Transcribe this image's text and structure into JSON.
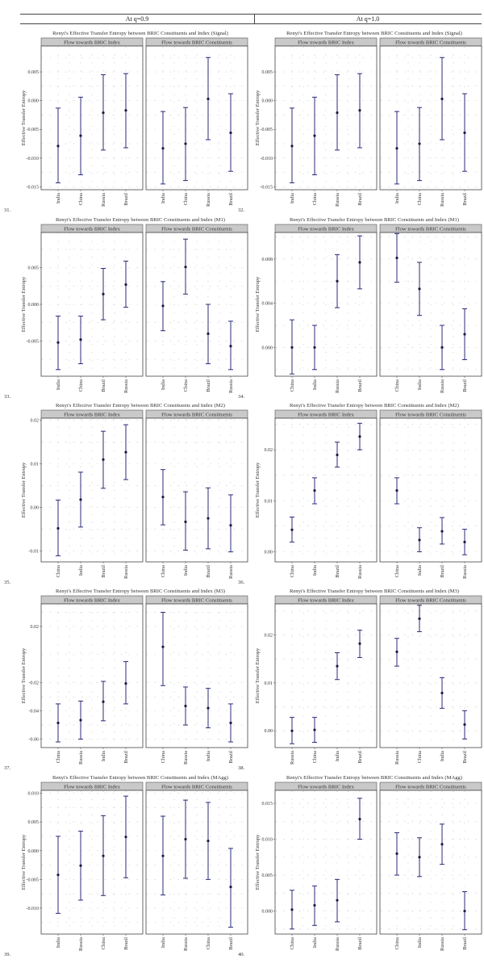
{
  "header": {
    "left": "At q=0.9",
    "right": "At q=1.0"
  },
  "ylabel": "Effective Transfer Entropy",
  "facet_labels": [
    "Flow towards BRIC Index",
    "Flow towards BRIC Constituents"
  ],
  "colors": {
    "series": "#2b2b7a",
    "facet_bg": "#c9c9c9",
    "grid": "#9a9a9a"
  },
  "chart_data": [
    {
      "id": "31.",
      "type": "scatter",
      "title": "Renyi's Effective Transfer Entropy between BRIC Constituents and Index (Signal)",
      "ylabel": "Effective Transfer Entropy",
      "ylim": [
        -0.0155,
        0.0095
      ],
      "yticks": [
        -0.015,
        -0.01,
        -0.005,
        0,
        0.005
      ],
      "ytick_labels": [
        "-0.015",
        "-0.010",
        "-0.005",
        "0.000",
        "0.005"
      ],
      "panels": [
        {
          "facet": "Flow towards BRIC Index",
          "categories": [
            "India",
            "China",
            "Russia",
            "Brazil"
          ],
          "values": [
            -0.0079,
            -0.0061,
            -0.0021,
            -0.0017
          ],
          "lower": [
            -0.0143,
            -0.0129,
            -0.0086,
            -0.0082
          ],
          "upper": [
            -0.0013,
            0.0006,
            0.0045,
            0.0047
          ]
        },
        {
          "facet": "Flow towards BRIC Constituents",
          "categories": [
            "India",
            "China",
            "Russia",
            "Brazil"
          ],
          "values": [
            -0.0083,
            -0.0075,
            0.0003,
            -0.0056
          ],
          "lower": [
            -0.0145,
            -0.0139,
            -0.0068,
            -0.0123
          ],
          "upper": [
            -0.0019,
            -0.0012,
            0.0075,
            0.0012
          ]
        }
      ]
    },
    {
      "id": "32.",
      "type": "scatter",
      "title": "Renyi's Effective Transfer Entropy between BRIC Constituents and Index (Signal)",
      "ylabel": "Effective Transfer Entropy",
      "ylim": [
        -0.0155,
        0.0095
      ],
      "yticks": [
        -0.015,
        -0.01,
        -0.005,
        0,
        0.005
      ],
      "ytick_labels": [
        "-0.015",
        "-0.010",
        "-0.005",
        "0.000",
        "0.005"
      ],
      "panels": [
        {
          "facet": "Flow towards BRIC Index",
          "categories": [
            "India",
            "China",
            "Russia",
            "Brazil"
          ],
          "values": [
            -0.0079,
            -0.0061,
            -0.0021,
            -0.0017
          ],
          "lower": [
            -0.0143,
            -0.0129,
            -0.0086,
            -0.0082
          ],
          "upper": [
            -0.0013,
            0.0006,
            0.0045,
            0.0047
          ]
        },
        {
          "facet": "Flow towards BRIC Constituents",
          "categories": [
            "India",
            "China",
            "Russia",
            "Brazil"
          ],
          "values": [
            -0.0083,
            -0.0075,
            0.0003,
            -0.0056
          ],
          "lower": [
            -0.0145,
            -0.0139,
            -0.0068,
            -0.0123
          ],
          "upper": [
            -0.0019,
            -0.0012,
            0.0075,
            0.0012
          ]
        }
      ]
    },
    {
      "id": "33.",
      "type": "scatter",
      "title": "Renyi's Effective Transfer Entropy between BRIC Constituents and Index (M1)",
      "ylabel": "Effective Transfer Entropy",
      "ylim": [
        -0.0098,
        0.0098
      ],
      "yticks": [
        -0.005,
        0,
        0.005
      ],
      "ytick_labels": [
        "-0.005",
        "0.000",
        "0.005"
      ],
      "panels": [
        {
          "facet": "Flow towards BRIC Index",
          "categories": [
            "India",
            "China",
            "Brazil",
            "Russia"
          ],
          "values": [
            -0.0052,
            -0.0048,
            0.0014,
            0.0027
          ],
          "lower": [
            -0.0089,
            -0.0081,
            -0.0021,
            -0.0004
          ],
          "upper": [
            -0.0016,
            -0.0016,
            0.0049,
            0.0059
          ]
        },
        {
          "facet": "Flow towards BRIC Constituents",
          "categories": [
            "India",
            "China",
            "Brazil",
            "Russia"
          ],
          "values": [
            -0.0002,
            0.0051,
            -0.004,
            -0.0057
          ],
          "lower": [
            -0.0036,
            0.0014,
            -0.0081,
            -0.0089
          ],
          "upper": [
            0.0031,
            0.0089,
            0.0,
            -0.0023
          ]
        }
      ]
    },
    {
      "id": "34.",
      "type": "scatter",
      "title": "Renyi's Effective Transfer Entropy between BRIC Constituents and Index (M1)",
      "ylabel": "Effective Transfer Entropy",
      "ylim": [
        -0.0026,
        0.0104
      ],
      "yticks": [
        0,
        0.004,
        0.008
      ],
      "ytick_labels": [
        "0.000",
        "0.004",
        "0.008"
      ],
      "panels": [
        {
          "facet": "Flow towards BRIC Index",
          "categories": [
            "China",
            "India",
            "Russia",
            "Brazil"
          ],
          "values": [
            0.0,
            0.0,
            0.006,
            0.0077
          ],
          "lower": [
            -0.0024,
            -0.002,
            0.0036,
            0.0053
          ],
          "upper": [
            0.0025,
            0.002,
            0.0084,
            0.0101
          ]
        },
        {
          "facet": "Flow towards BRIC Constituents",
          "categories": [
            "China",
            "India",
            "Russia",
            "Brazil"
          ],
          "values": [
            0.0081,
            0.0053,
            0.0,
            0.0012
          ],
          "lower": [
            0.0059,
            0.0029,
            -0.002,
            -0.0011
          ],
          "upper": [
            0.0103,
            0.0077,
            0.002,
            0.0035
          ]
        }
      ]
    },
    {
      "id": "35.",
      "type": "scatter",
      "title": "Renyi's Effective Transfer Entropy between BRIC Constituents and Index (M2)",
      "ylabel": "Effective Transfer Entropy",
      "ylim": [
        -0.0125,
        0.0205
      ],
      "yticks": [
        -0.01,
        0,
        0.01,
        0.02
      ],
      "ytick_labels": [
        "-0.01",
        "0.00",
        "0.01",
        "0.02"
      ],
      "panels": [
        {
          "facet": "Flow towards BRIC Index",
          "categories": [
            "China",
            "India",
            "Brazil",
            "Russia"
          ],
          "values": [
            -0.0048,
            0.0018,
            0.011,
            0.0127
          ],
          "lower": [
            -0.0111,
            -0.0045,
            0.0044,
            0.0064
          ],
          "upper": [
            0.0017,
            0.0081,
            0.0175,
            0.019
          ]
        },
        {
          "facet": "Flow towards BRIC Constituents",
          "categories": [
            "China",
            "India",
            "Brazil",
            "Russia"
          ],
          "values": [
            0.0024,
            -0.0033,
            -0.0025,
            -0.0041
          ],
          "lower": [
            -0.004,
            -0.0098,
            -0.0095,
            -0.0102
          ],
          "upper": [
            0.0087,
            0.0036,
            0.0045,
            0.0029
          ]
        }
      ]
    },
    {
      "id": "36.",
      "type": "scatter",
      "title": "Renyi's Effective Transfer Entropy between BRIC Constituents and Index (M2)",
      "ylabel": "Effective Transfer Entropy",
      "ylim": [
        -0.002,
        0.0262
      ],
      "yticks": [
        0,
        0.01,
        0.02
      ],
      "ytick_labels": [
        "0.00",
        "0.01",
        "0.02"
      ],
      "panels": [
        {
          "facet": "Flow towards BRIC Index",
          "categories": [
            "China",
            "India",
            "Brazil",
            "Russia"
          ],
          "values": [
            0.0043,
            0.012,
            0.019,
            0.0226
          ],
          "lower": [
            0.0019,
            0.0094,
            0.0166,
            0.02
          ],
          "upper": [
            0.0068,
            0.0145,
            0.0215,
            0.0252
          ]
        },
        {
          "facet": "Flow towards BRIC Constituents",
          "categories": [
            "China",
            "India",
            "Brazil",
            "Russia"
          ],
          "values": [
            0.012,
            0.0023,
            0.004,
            0.0019
          ],
          "lower": [
            0.0094,
            0.0,
            0.0015,
            -0.0006
          ],
          "upper": [
            0.0145,
            0.0047,
            0.0067,
            0.0044
          ]
        }
      ]
    },
    {
      "id": "37.",
      "type": "scatter",
      "title": "Renyi's Effective Transfer Entropy between BRIC Constituents and Index (M3)",
      "ylabel": "Effective Transfer Entropy",
      "ylim": [
        -0.066,
        0.036
      ],
      "yticks": [
        -0.06,
        -0.04,
        -0.02,
        0.02
      ],
      "ytick_labels": [
        "-0.06",
        "-0.04",
        "-0.02",
        "0.02"
      ],
      "panels": [
        {
          "facet": "Flow towards BRIC Index",
          "categories": [
            "China",
            "Russia",
            "India",
            "Brazil"
          ],
          "values": [
            -0.0485,
            -0.0465,
            -0.0335,
            -0.0205
          ],
          "lower": [
            -0.062,
            -0.06,
            -0.047,
            -0.035
          ],
          "upper": [
            -0.035,
            -0.033,
            -0.019,
            -0.005
          ]
        },
        {
          "facet": "Flow towards BRIC Constituents",
          "categories": [
            "China",
            "Russia",
            "India",
            "Brazil"
          ],
          "values": [
            0.0055,
            -0.0365,
            -0.038,
            -0.0485
          ],
          "lower": [
            -0.022,
            -0.05,
            -0.052,
            -0.062
          ],
          "upper": [
            0.03,
            -0.023,
            -0.024,
            -0.035
          ]
        }
      ]
    },
    {
      "id": "38.",
      "type": "scatter",
      "title": "Renyi's Effective Transfer Entropy between BRIC Constituents and Index (M3)",
      "ylabel": "Effective Transfer Entropy",
      "ylim": [
        -0.0035,
        0.0265
      ],
      "yticks": [
        0,
        0.01,
        0.02
      ],
      "ytick_labels": [
        "0.00",
        "0.01",
        "0.02"
      ],
      "panels": [
        {
          "facet": "Flow towards BRIC Index",
          "categories": [
            "Russia",
            "China",
            "India",
            "Brazil"
          ],
          "values": [
            0.0,
            0.0002,
            0.0135,
            0.0182
          ],
          "lower": [
            -0.0027,
            -0.0024,
            0.0107,
            0.0153
          ],
          "upper": [
            0.0028,
            0.0028,
            0.0163,
            0.021
          ]
        },
        {
          "facet": "Flow towards BRIC Constituents",
          "categories": [
            "Russia",
            "China",
            "India",
            "Brazil"
          ],
          "values": [
            0.0165,
            0.0234,
            0.0079,
            0.0013
          ],
          "lower": [
            0.0135,
            0.0207,
            0.0047,
            -0.0017
          ],
          "upper": [
            0.0193,
            0.0262,
            0.0111,
            0.0042
          ]
        }
      ]
    },
    {
      "id": "39.",
      "type": "scatter",
      "title": "Renyi's Effective Transfer Entropy between BRIC Constituents and Index (MAgg)",
      "ylabel": "Effective Transfer Entropy",
      "ylim": [
        -0.0145,
        0.0105
      ],
      "yticks": [
        -0.01,
        -0.005,
        0,
        0.005,
        0.01
      ],
      "ytick_labels": [
        "-0.010",
        "-0.005",
        "0.000",
        "0.005",
        "0.010"
      ],
      "panels": [
        {
          "facet": "Flow towards BRIC Index",
          "categories": [
            "India",
            "Russia",
            "China",
            "Brazil"
          ],
          "values": [
            -0.0042,
            -0.0026,
            -0.0009,
            0.0024
          ],
          "lower": [
            -0.0109,
            -0.0086,
            -0.0078,
            -0.0047
          ],
          "upper": [
            0.0025,
            0.0034,
            0.0061,
            0.0095
          ]
        },
        {
          "facet": "Flow towards BRIC Constituents",
          "categories": [
            "India",
            "Russia",
            "China",
            "Brazil"
          ],
          "values": [
            -0.0009,
            0.002,
            0.0017,
            -0.0063
          ],
          "lower": [
            -0.0077,
            -0.0048,
            -0.005,
            -0.0133
          ],
          "upper": [
            0.006,
            0.0088,
            0.0084,
            0.0004
          ]
        }
      ]
    },
    {
      "id": "40.",
      "type": "scatter",
      "title": "Renyi's Effective Transfer Entropy between BRIC Constituents and Index (MAgg)",
      "ylabel": "Effective Transfer Entropy",
      "ylim": [
        -0.0032,
        0.0168
      ],
      "yticks": [
        0,
        0.005,
        0.01,
        0.015
      ],
      "ytick_labels": [
        "0.000",
        "0.005",
        "0.010",
        "0.015"
      ],
      "panels": [
        {
          "facet": "Flow towards BRIC Index",
          "categories": [
            "China",
            "India",
            "Russia",
            "Brazil"
          ],
          "values": [
            0.0002,
            0.0008,
            0.0015,
            0.0128
          ],
          "lower": [
            -0.0025,
            -0.002,
            -0.0015,
            0.01
          ],
          "upper": [
            0.0029,
            0.0035,
            0.0044,
            0.0157
          ]
        },
        {
          "facet": "Flow towards BRIC Constituents",
          "categories": [
            "China",
            "India",
            "Russia",
            "Brazil"
          ],
          "values": [
            0.008,
            0.0075,
            0.0093,
            0.0
          ],
          "lower": [
            0.005,
            0.0048,
            0.0065,
            -0.0026
          ],
          "upper": [
            0.0109,
            0.0102,
            0.0121,
            0.0027
          ]
        }
      ]
    }
  ]
}
